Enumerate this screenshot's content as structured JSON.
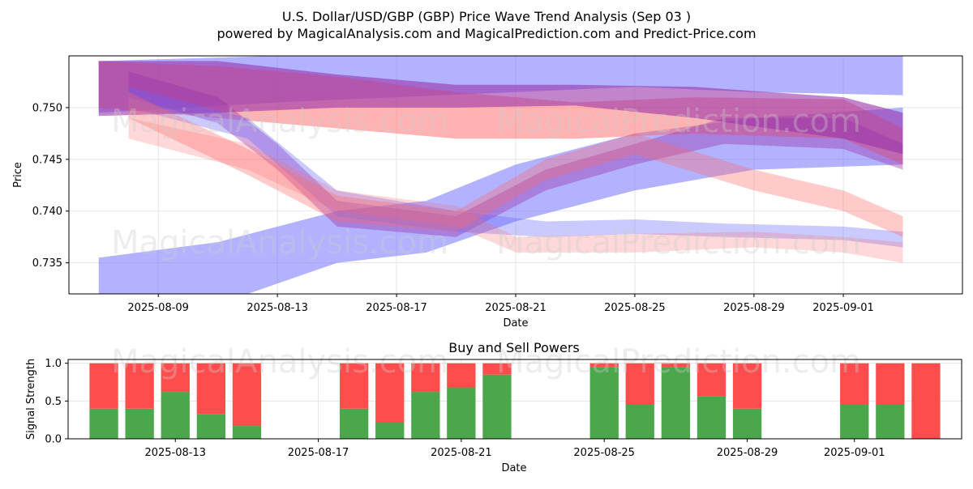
{
  "header": {
    "title": "U.S. Dollar/USD/GBP (GBP) Price Wave Trend Analysis (Sep 03 )",
    "subtitle": "powered by MagicalAnalysis.com and MagicalPrediction.com and Predict-Price.com"
  },
  "watermarks": {
    "left": "MagicalAnalysis.com",
    "right": "MagicalPrediction.com"
  },
  "colors": {
    "blue_band": "#6666ff",
    "red_band": "#ff6666",
    "purple_band": "#9933aa",
    "buy": "#4ca64c",
    "sell": "#ff4c4c"
  },
  "chart_data": [
    {
      "type": "area",
      "title": "",
      "xlabel": "Date",
      "ylabel": "Price",
      "xlim": [
        "2025-08-06",
        "2025-09-05"
      ],
      "ylim": [
        0.732,
        0.755
      ],
      "x_ticks": [
        "2025-08-09",
        "2025-08-13",
        "2025-08-17",
        "2025-08-21",
        "2025-08-25",
        "2025-08-29",
        "2025-09-01"
      ],
      "y_ticks": [
        0.735,
        0.74,
        0.745,
        0.75
      ],
      "grid": true,
      "series": [
        {
          "name": "blue upper wide band",
          "color": "blue",
          "alpha": 0.5,
          "x": [
            "2025-08-07",
            "2025-08-13",
            "2025-08-17",
            "2025-08-21",
            "2025-08-25",
            "2025-08-29",
            "2025-09-03"
          ],
          "lower": [
            0.7495,
            0.7505,
            0.751,
            0.7515,
            0.752,
            0.7515,
            0.7512
          ],
          "upper": [
            0.7545,
            0.755,
            0.755,
            0.755,
            0.755,
            0.755,
            0.755
          ]
        },
        {
          "name": "blue rising band",
          "color": "blue",
          "alpha": 0.5,
          "x": [
            "2025-08-07",
            "2025-08-11",
            "2025-08-15",
            "2025-08-18",
            "2025-08-21",
            "2025-08-25",
            "2025-08-29",
            "2025-09-03"
          ],
          "lower": [
            0.73,
            0.731,
            0.735,
            0.736,
            0.739,
            0.742,
            0.744,
            0.7445
          ],
          "upper": [
            0.7355,
            0.737,
            0.74,
            0.741,
            0.7445,
            0.7475,
            0.749,
            0.75
          ]
        },
        {
          "name": "red upper band",
          "color": "red",
          "alpha": 0.5,
          "x": [
            "2025-08-07",
            "2025-08-11",
            "2025-08-15",
            "2025-08-19",
            "2025-08-23",
            "2025-08-27",
            "2025-09-01",
            "2025-09-03"
          ],
          "lower": [
            0.75,
            0.749,
            0.748,
            0.747,
            0.747,
            0.7475,
            0.747,
            0.7445
          ],
          "upper": [
            0.7545,
            0.754,
            0.753,
            0.7515,
            0.7505,
            0.751,
            0.7508,
            0.748
          ]
        },
        {
          "name": "purple upper band",
          "color": "purple",
          "alpha": 0.6,
          "x": [
            "2025-08-07",
            "2025-08-11",
            "2025-08-15",
            "2025-08-19",
            "2025-08-23",
            "2025-08-27",
            "2025-09-01",
            "2025-09-03"
          ],
          "lower": [
            0.7492,
            0.7495,
            0.75,
            0.75,
            0.7502,
            0.749,
            0.747,
            0.7455
          ],
          "upper": [
            0.7545,
            0.7545,
            0.7532,
            0.7522,
            0.7522,
            0.752,
            0.751,
            0.7495
          ]
        },
        {
          "name": "purple falling band",
          "color": "purple",
          "alpha": 0.4,
          "x": [
            "2025-08-08",
            "2025-08-11",
            "2025-08-13",
            "2025-08-15",
            "2025-08-19",
            "2025-08-22",
            "2025-08-25",
            "2025-08-28",
            "2025-09-01",
            "2025-09-03"
          ],
          "lower": [
            0.751,
            0.7485,
            0.744,
            0.7385,
            0.7375,
            0.742,
            0.7445,
            0.7465,
            0.746,
            0.744
          ],
          "upper": [
            0.7535,
            0.751,
            0.7465,
            0.741,
            0.7395,
            0.744,
            0.7465,
            0.749,
            0.749,
            0.7465
          ]
        },
        {
          "name": "blue falling band",
          "color": "blue",
          "alpha": 0.35,
          "x": [
            "2025-08-08",
            "2025-08-12",
            "2025-08-15",
            "2025-08-19",
            "2025-08-22",
            "2025-08-25",
            "2025-08-28",
            "2025-09-01",
            "2025-09-03"
          ],
          "lower": [
            0.75,
            0.747,
            0.7395,
            0.738,
            0.7375,
            0.7378,
            0.7375,
            0.7372,
            0.7365
          ],
          "upper": [
            0.752,
            0.749,
            0.742,
            0.74,
            0.739,
            0.7392,
            0.7388,
            0.7385,
            0.738
          ]
        },
        {
          "name": "pink lower band",
          "color": "red",
          "alpha": 0.25,
          "x": [
            "2025-08-08",
            "2025-08-12",
            "2025-08-15",
            "2025-08-19",
            "2025-08-21",
            "2025-08-25",
            "2025-08-29",
            "2025-09-01",
            "2025-09-03"
          ],
          "lower": [
            0.747,
            0.744,
            0.74,
            0.7385,
            0.736,
            0.736,
            0.7365,
            0.736,
            0.735
          ],
          "upper": [
            0.749,
            0.7465,
            0.742,
            0.7405,
            0.7375,
            0.7378,
            0.738,
            0.7375,
            0.737
          ]
        },
        {
          "name": "red middle band",
          "color": "red",
          "alpha": 0.35,
          "x": [
            "2025-08-08",
            "2025-08-12",
            "2025-08-15",
            "2025-08-19",
            "2025-08-22",
            "2025-08-25",
            "2025-08-29",
            "2025-09-01",
            "2025-09-03"
          ],
          "lower": [
            0.749,
            0.7435,
            0.739,
            0.738,
            0.743,
            0.7455,
            0.742,
            0.74,
            0.7375
          ],
          "upper": [
            0.7515,
            0.746,
            0.7415,
            0.74,
            0.745,
            0.7475,
            0.744,
            0.742,
            0.7395
          ]
        }
      ]
    },
    {
      "type": "bar",
      "title": "Buy and Sell Powers",
      "xlabel": "Date",
      "ylabel": "Signal Strength",
      "xlim": [
        "2025-08-10",
        "2025-09-04"
      ],
      "ylim": [
        0,
        1.05
      ],
      "x_ticks": [
        "2025-08-13",
        "2025-08-17",
        "2025-08-21",
        "2025-08-25",
        "2025-08-29",
        "2025-09-01"
      ],
      "y_ticks": [
        "0.0",
        "0.5",
        "1.0"
      ],
      "categories": [
        "2025-08-11",
        "2025-08-12",
        "2025-08-13",
        "2025-08-14",
        "2025-08-15",
        "2025-08-18",
        "2025-08-19",
        "2025-08-20",
        "2025-08-21",
        "2025-08-22",
        "2025-08-25",
        "2025-08-26",
        "2025-08-27",
        "2025-08-28",
        "2025-08-29",
        "2025-09-01",
        "2025-09-02",
        "2025-09-03"
      ],
      "series": [
        {
          "name": "Buy",
          "color": "buy",
          "values": [
            0.4,
            0.4,
            0.62,
            0.33,
            0.17,
            0.4,
            0.22,
            0.62,
            0.68,
            0.85,
            0.95,
            0.45,
            0.95,
            0.56,
            0.4,
            0.45,
            0.45,
            0.0
          ]
        },
        {
          "name": "Sell",
          "color": "sell",
          "values": [
            0.6,
            0.6,
            0.38,
            0.67,
            0.83,
            0.6,
            0.78,
            0.38,
            0.32,
            0.15,
            0.05,
            0.55,
            0.05,
            0.44,
            0.6,
            0.55,
            0.55,
            1.0
          ]
        }
      ]
    }
  ]
}
